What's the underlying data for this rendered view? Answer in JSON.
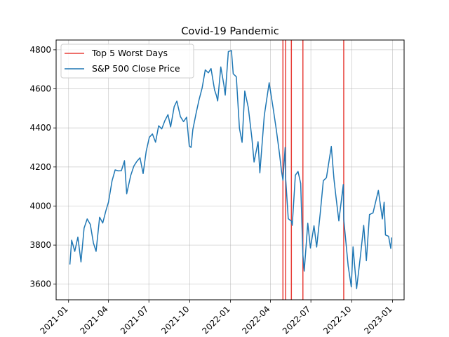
{
  "chart_data": {
    "type": "line",
    "title": "Covid-19 Pandemic",
    "xlabel": "",
    "ylabel": "",
    "x_tick_labels": [
      "2021-01",
      "2021-04",
      "2021-07",
      "2021-10",
      "2022-01",
      "2022-04",
      "2022-07",
      "2022-10",
      "2023-01"
    ],
    "y_ticks": [
      3600,
      3800,
      4000,
      4200,
      4400,
      4600,
      4800
    ],
    "xlim": [
      "2020-12-04",
      "2023-01-27"
    ],
    "ylim": [
      3520,
      4850
    ],
    "grid": true,
    "legend_placement": "upper-left",
    "series": [
      {
        "name": "S&P 500 Close Price",
        "color": "#1f77b4",
        "points": [
          [
            "2021-01-04",
            3701
          ],
          [
            "2021-01-08",
            3825
          ],
          [
            "2021-01-15",
            3768
          ],
          [
            "2021-01-22",
            3841
          ],
          [
            "2021-01-29",
            3714
          ],
          [
            "2021-02-05",
            3887
          ],
          [
            "2021-02-12",
            3934
          ],
          [
            "2021-02-19",
            3906
          ],
          [
            "2021-02-26",
            3811
          ],
          [
            "2021-03-04",
            3768
          ],
          [
            "2021-03-12",
            3943
          ],
          [
            "2021-03-19",
            3913
          ],
          [
            "2021-03-26",
            3975
          ],
          [
            "2021-04-01",
            4020
          ],
          [
            "2021-04-09",
            4129
          ],
          [
            "2021-04-16",
            4185
          ],
          [
            "2021-04-23",
            4180
          ],
          [
            "2021-04-30",
            4181
          ],
          [
            "2021-05-07",
            4232
          ],
          [
            "2021-05-12",
            4063
          ],
          [
            "2021-05-21",
            4156
          ],
          [
            "2021-05-28",
            4204
          ],
          [
            "2021-06-04",
            4229
          ],
          [
            "2021-06-11",
            4247
          ],
          [
            "2021-06-18",
            4166
          ],
          [
            "2021-06-25",
            4281
          ],
          [
            "2021-07-02",
            4352
          ],
          [
            "2021-07-09",
            4369
          ],
          [
            "2021-07-16",
            4327
          ],
          [
            "2021-07-23",
            4411
          ],
          [
            "2021-07-30",
            4395
          ],
          [
            "2021-08-06",
            4437
          ],
          [
            "2021-08-13",
            4468
          ],
          [
            "2021-08-19",
            4405
          ],
          [
            "2021-08-27",
            4509
          ],
          [
            "2021-09-02",
            4537
          ],
          [
            "2021-09-10",
            4458
          ],
          [
            "2021-09-17",
            4432
          ],
          [
            "2021-09-24",
            4455
          ],
          [
            "2021-09-30",
            4307
          ],
          [
            "2021-10-04",
            4300
          ],
          [
            "2021-10-08",
            4391
          ],
          [
            "2021-10-15",
            4471
          ],
          [
            "2021-10-22",
            4544
          ],
          [
            "2021-10-29",
            4605
          ],
          [
            "2021-11-05",
            4697
          ],
          [
            "2021-11-12",
            4682
          ],
          [
            "2021-11-18",
            4704
          ],
          [
            "2021-11-26",
            4594
          ],
          [
            "2021-11-30",
            4567
          ],
          [
            "2021-12-03",
            4538
          ],
          [
            "2021-12-10",
            4712
          ],
          [
            "2021-12-17",
            4620
          ],
          [
            "2021-12-20",
            4568
          ],
          [
            "2021-12-27",
            4791
          ],
          [
            "2022-01-03",
            4796
          ],
          [
            "2022-01-07",
            4677
          ],
          [
            "2022-01-14",
            4662
          ],
          [
            "2022-01-21",
            4398
          ],
          [
            "2022-01-27",
            4326
          ],
          [
            "2022-02-02",
            4589
          ],
          [
            "2022-02-10",
            4504
          ],
          [
            "2022-02-18",
            4349
          ],
          [
            "2022-02-23",
            4225
          ],
          [
            "2022-03-04",
            4329
          ],
          [
            "2022-03-08",
            4170
          ],
          [
            "2022-03-18",
            4463
          ],
          [
            "2022-03-29",
            4631
          ],
          [
            "2022-04-07",
            4500
          ],
          [
            "2022-04-14",
            4392
          ],
          [
            "2022-04-21",
            4272
          ],
          [
            "2022-04-26",
            4175
          ],
          [
            "2022-04-29",
            4132
          ],
          [
            "2022-05-04",
            4300
          ],
          [
            "2022-05-05",
            4147
          ],
          [
            "2022-05-11",
            3935
          ],
          [
            "2022-05-18",
            3923
          ],
          [
            "2022-05-20",
            3901
          ],
          [
            "2022-05-27",
            4158
          ],
          [
            "2022-06-02",
            4177
          ],
          [
            "2022-06-08",
            4116
          ],
          [
            "2022-06-13",
            3750
          ],
          [
            "2022-06-16",
            3667
          ],
          [
            "2022-06-24",
            3912
          ],
          [
            "2022-06-30",
            3785
          ],
          [
            "2022-07-08",
            3899
          ],
          [
            "2022-07-14",
            3790
          ],
          [
            "2022-07-22",
            3962
          ],
          [
            "2022-07-29",
            4130
          ],
          [
            "2022-08-05",
            4145
          ],
          [
            "2022-08-16",
            4305
          ],
          [
            "2022-08-22",
            4138
          ],
          [
            "2022-08-26",
            4057
          ],
          [
            "2022-09-02",
            3924
          ],
          [
            "2022-09-12",
            4110
          ],
          [
            "2022-09-13",
            3932
          ],
          [
            "2022-09-23",
            3693
          ],
          [
            "2022-09-30",
            3586
          ],
          [
            "2022-10-04",
            3791
          ],
          [
            "2022-10-12",
            3577
          ],
          [
            "2022-10-21",
            3752
          ],
          [
            "2022-10-28",
            3901
          ],
          [
            "2022-11-03",
            3720
          ],
          [
            "2022-11-10",
            3956
          ],
          [
            "2022-11-18",
            3965
          ],
          [
            "2022-11-30",
            4080
          ],
          [
            "2022-12-05",
            3998
          ],
          [
            "2022-12-09",
            3934
          ],
          [
            "2022-12-13",
            4019
          ],
          [
            "2022-12-16",
            3852
          ],
          [
            "2022-12-23",
            3845
          ],
          [
            "2022-12-28",
            3783
          ],
          [
            "2022-12-30",
            3839
          ]
        ]
      },
      {
        "name": "Top 5 Worst Days",
        "color": "#e8403a",
        "dates": [
          "2022-04-29",
          "2022-05-05",
          "2022-05-18",
          "2022-06-13",
          "2022-09-13"
        ]
      }
    ]
  }
}
